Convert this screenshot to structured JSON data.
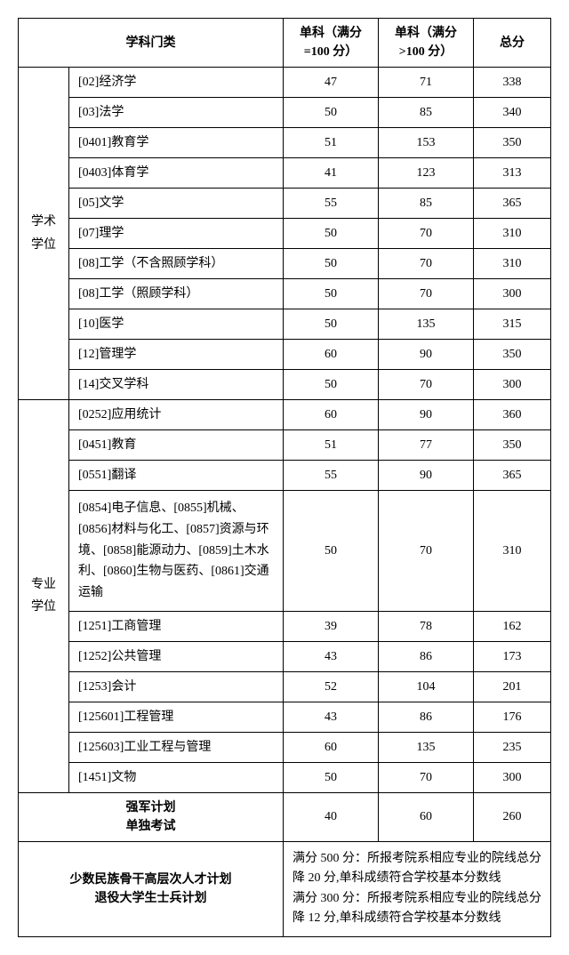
{
  "headers": {
    "category": "学科门类",
    "score100": "单科（满分=100 分）",
    "scoreGt100": "单科（满分>100 分）",
    "total": "总分"
  },
  "groups": [
    {
      "label": "学术\n学位",
      "rows": [
        {
          "subject": "[02]经济学",
          "s1": "47",
          "s2": "71",
          "total": "338"
        },
        {
          "subject": "[03]法学",
          "s1": "50",
          "s2": "85",
          "total": "340"
        },
        {
          "subject": "[0401]教育学",
          "s1": "51",
          "s2": "153",
          "total": "350"
        },
        {
          "subject": "[0403]体育学",
          "s1": "41",
          "s2": "123",
          "total": "313"
        },
        {
          "subject": "[05]文学",
          "s1": "55",
          "s2": "85",
          "total": "365"
        },
        {
          "subject": "[07]理学",
          "s1": "50",
          "s2": "70",
          "total": "310"
        },
        {
          "subject": "[08]工学（不含照顾学科）",
          "s1": "50",
          "s2": "70",
          "total": "310"
        },
        {
          "subject": "[08]工学（照顾学科）",
          "s1": "50",
          "s2": "70",
          "total": "300"
        },
        {
          "subject": "[10]医学",
          "s1": "50",
          "s2": "135",
          "total": "315"
        },
        {
          "subject": "[12]管理学",
          "s1": "60",
          "s2": "90",
          "total": "350"
        },
        {
          "subject": "[14]交叉学科",
          "s1": "50",
          "s2": "70",
          "total": "300"
        }
      ]
    },
    {
      "label": "专业\n学位",
      "rows": [
        {
          "subject": "[0252]应用统计",
          "s1": "60",
          "s2": "90",
          "total": "360"
        },
        {
          "subject": "[0451]教育",
          "s1": "51",
          "s2": "77",
          "total": "350"
        },
        {
          "subject": "[0551]翻译",
          "s1": "55",
          "s2": "90",
          "total": "365"
        },
        {
          "subject": "[0854]电子信息、[0855]机械、[0856]材料与化工、[0857]资源与环境、[0858]能源动力、[0859]土木水利、[0860]生物与医药、[0861]交通运输",
          "s1": "50",
          "s2": "70",
          "total": "310",
          "multi": true
        },
        {
          "subject": "[1251]工商管理",
          "s1": "39",
          "s2": "78",
          "total": "162"
        },
        {
          "subject": "[1252]公共管理",
          "s1": "43",
          "s2": "86",
          "total": "173"
        },
        {
          "subject": "[1253]会计",
          "s1": "52",
          "s2": "104",
          "total": "201"
        },
        {
          "subject": "[125601]工程管理",
          "s1": "43",
          "s2": "86",
          "total": "176"
        },
        {
          "subject": "[125603]工业工程与管理",
          "s1": "60",
          "s2": "135",
          "total": "235"
        },
        {
          "subject": "[1451]文物",
          "s1": "50",
          "s2": "70",
          "total": "300"
        }
      ]
    }
  ],
  "special": {
    "plan1": {
      "label": "强军计划\n单独考试",
      "s1": "40",
      "s2": "60",
      "total": "260"
    },
    "plan2": {
      "label": "少数民族骨干高层次人才计划\n退役大学生士兵计划",
      "note": "满分 500 分：所报考院系相应专业的院线总分降 20 分,单科成绩符合学校基本分数线\n满分 300 分：所报考院系相应专业的院线总分降 12 分,单科成绩符合学校基本分数线"
    }
  },
  "style": {
    "border_color": "#000000",
    "bg_color": "#ffffff",
    "text_color": "#000000",
    "fontsize": 14
  }
}
